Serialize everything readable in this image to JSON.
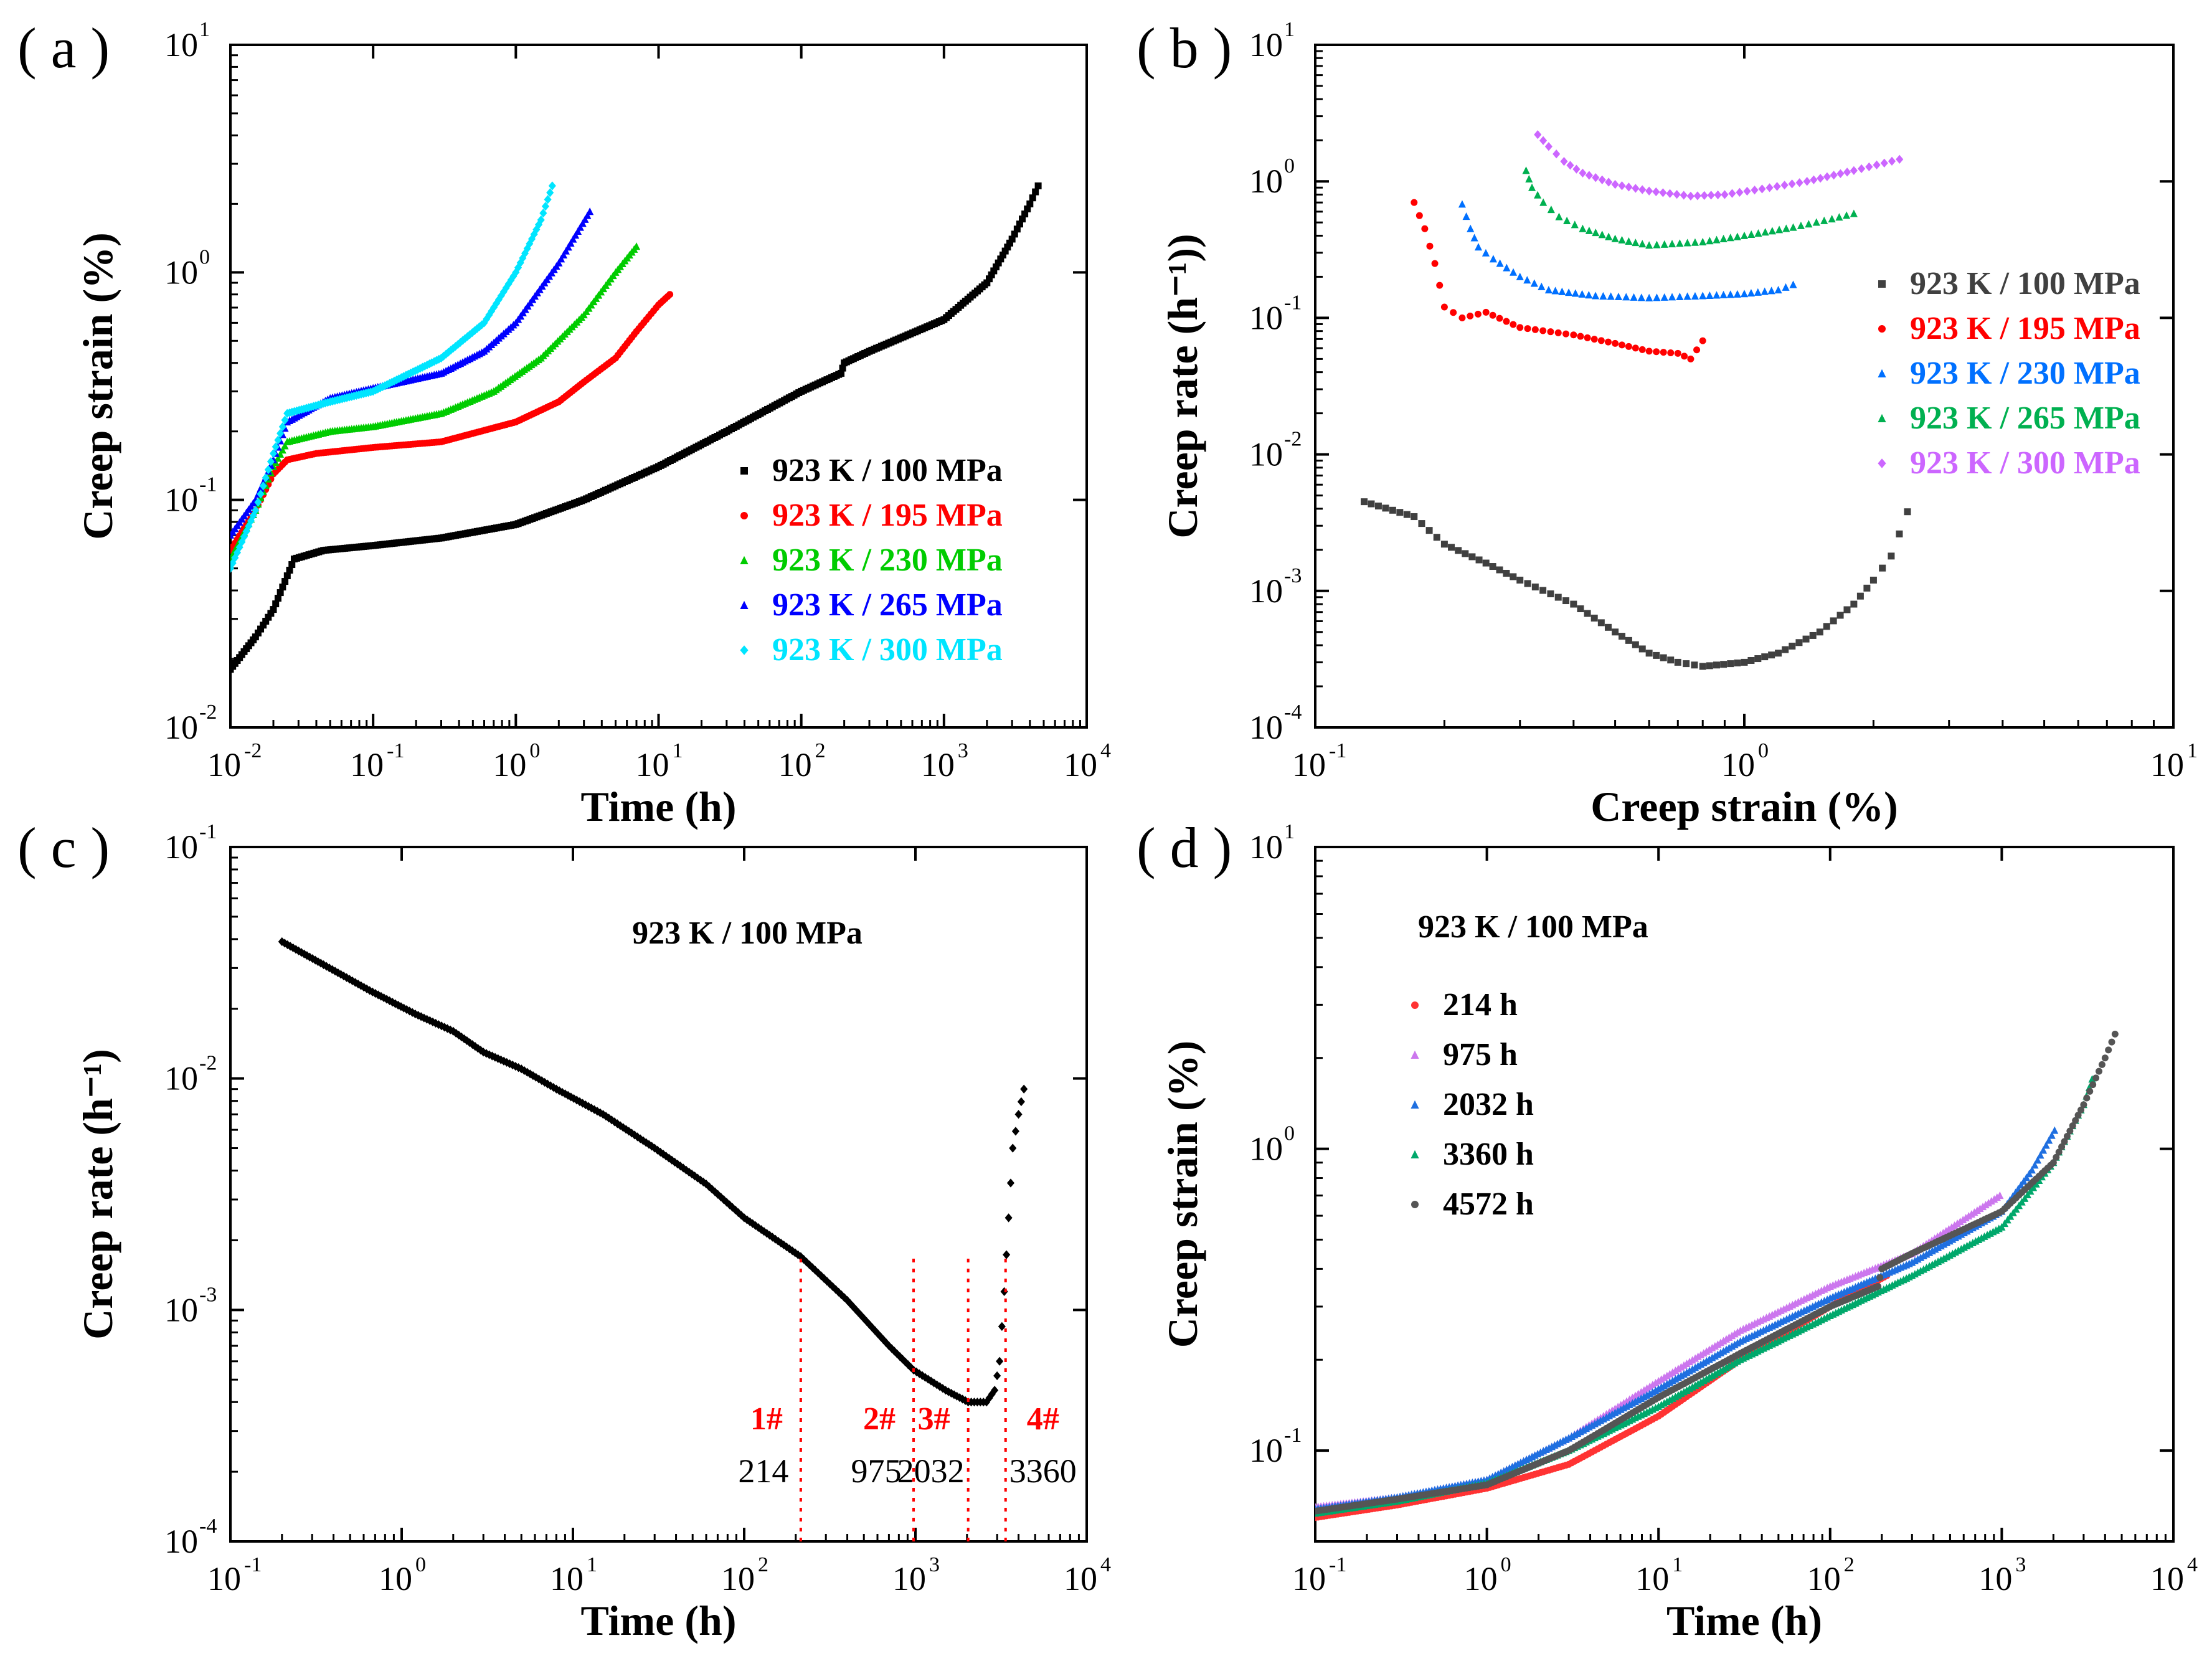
{
  "figure": {
    "panel_labels": [
      "( a )",
      "( b )",
      "( c )",
      "( d )"
    ]
  },
  "chart_data": [
    {
      "id": "a",
      "type": "scatter",
      "title": "",
      "xlabel": "Time (h)",
      "ylabel": "Creep strain (%)",
      "xscale": "log",
      "yscale": "log",
      "xlim": [
        0.01,
        10000
      ],
      "ylim": [
        0.01,
        10
      ],
      "legend_position": "lower-right",
      "series": [
        {
          "name": "923 K / 100 MPa",
          "color": "#000000",
          "marker": "square",
          "x": [
            0.01,
            0.015,
            0.02,
            0.028,
            0.045,
            0.1,
            0.3,
            1,
            3,
            10,
            30,
            100,
            190,
            200,
            300,
            1000,
            2000,
            3000,
            4000,
            4572
          ],
          "y": [
            0.018,
            0.025,
            0.033,
            0.055,
            0.06,
            0.063,
            0.068,
            0.078,
            0.1,
            0.14,
            0.2,
            0.3,
            0.36,
            0.4,
            0.45,
            0.62,
            0.9,
            1.4,
            2.0,
            2.4
          ]
        },
        {
          "name": "923 K / 195 MPa",
          "color": "#ff0000",
          "marker": "circle",
          "x": [
            0.01,
            0.015,
            0.02,
            0.025,
            0.04,
            0.1,
            0.3,
            1,
            2,
            3,
            5,
            7,
            10,
            12
          ],
          "y": [
            0.06,
            0.09,
            0.13,
            0.15,
            0.16,
            0.17,
            0.18,
            0.22,
            0.27,
            0.33,
            0.42,
            0.55,
            0.72,
            0.8
          ]
        },
        {
          "name": "923 K / 230 MPa",
          "color": "#00cc00",
          "marker": "triangle",
          "x": [
            0.01,
            0.015,
            0.02,
            0.025,
            0.05,
            0.1,
            0.3,
            0.7,
            1.5,
            3,
            5,
            7
          ],
          "y": [
            0.055,
            0.09,
            0.14,
            0.18,
            0.2,
            0.21,
            0.24,
            0.3,
            0.42,
            0.65,
            1.0,
            1.3
          ]
        },
        {
          "name": "923 K / 265 MPa",
          "color": "#0000ff",
          "marker": "triangle",
          "x": [
            0.01,
            0.015,
            0.02,
            0.025,
            0.05,
            0.1,
            0.3,
            0.6,
            1,
            2,
            3.3
          ],
          "y": [
            0.07,
            0.1,
            0.15,
            0.22,
            0.28,
            0.31,
            0.36,
            0.45,
            0.6,
            1.1,
            1.85
          ]
        },
        {
          "name": "923 K / 300 MPa",
          "color": "#00e5ff",
          "marker": "diamond",
          "x": [
            0.01,
            0.015,
            0.02,
            0.025,
            0.05,
            0.1,
            0.3,
            0.6,
            1,
            1.5,
            1.8
          ],
          "y": [
            0.05,
            0.09,
            0.16,
            0.24,
            0.27,
            0.3,
            0.42,
            0.6,
            1.0,
            1.7,
            2.4
          ]
        }
      ]
    },
    {
      "id": "b",
      "type": "scatter",
      "title": "",
      "xlabel": "Creep strain (%)",
      "ylabel": "Creep rate (h⁻¹))",
      "xscale": "log",
      "yscale": "log",
      "xlim": [
        0.1,
        10
      ],
      "ylim": [
        0.0001,
        10
      ],
      "legend_position": "right",
      "series": [
        {
          "name": "923 K / 100 MPa",
          "color": "#404040",
          "marker": "square",
          "x": [
            0.13,
            0.17,
            0.2,
            0.25,
            0.3,
            0.4,
            0.5,
            0.6,
            0.7,
            0.8,
            1.0,
            1.2,
            1.5,
            1.8,
            2.0,
            2.2,
            2.4
          ],
          "y": [
            0.0045,
            0.0035,
            0.0022,
            0.0016,
            0.0012,
            0.0008,
            0.0005,
            0.00035,
            0.0003,
            0.00028,
            0.0003,
            0.00035,
            0.0005,
            0.0008,
            0.0012,
            0.0018,
            0.0038
          ]
        },
        {
          "name": "923 K / 195 MPa",
          "color": "#ff0000",
          "marker": "circle",
          "x": [
            0.17,
            0.18,
            0.19,
            0.2,
            0.22,
            0.25,
            0.3,
            0.4,
            0.5,
            0.6,
            0.7,
            0.75,
            0.8
          ],
          "y": [
            0.7,
            0.45,
            0.25,
            0.12,
            0.1,
            0.11,
            0.085,
            0.075,
            0.065,
            0.057,
            0.055,
            0.05,
            0.068
          ]
        },
        {
          "name": "923 K / 230 MPa",
          "color": "#0070ff",
          "marker": "triangle",
          "x": [
            0.22,
            0.23,
            0.24,
            0.26,
            0.3,
            0.35,
            0.45,
            0.6,
            0.8,
            1.0,
            1.2,
            1.3
          ],
          "y": [
            0.68,
            0.45,
            0.33,
            0.27,
            0.2,
            0.16,
            0.145,
            0.14,
            0.145,
            0.15,
            0.16,
            0.175
          ]
        },
        {
          "name": "923 K / 265 MPa",
          "color": "#00b050",
          "marker": "triangle",
          "x": [
            0.31,
            0.32,
            0.34,
            0.37,
            0.42,
            0.5,
            0.6,
            0.8,
            1.0,
            1.3,
            1.6,
            1.8
          ],
          "y": [
            1.2,
            0.9,
            0.7,
            0.55,
            0.45,
            0.38,
            0.34,
            0.36,
            0.4,
            0.46,
            0.53,
            0.58
          ]
        },
        {
          "name": "923 K / 300 MPa",
          "color": "#cc66ff",
          "marker": "diamond",
          "x": [
            0.33,
            0.35,
            0.38,
            0.42,
            0.5,
            0.6,
            0.75,
            0.9,
            1.1,
            1.4,
            1.8,
            2.3
          ],
          "y": [
            2.2,
            1.8,
            1.4,
            1.15,
            0.95,
            0.85,
            0.78,
            0.8,
            0.88,
            1.0,
            1.2,
            1.45
          ]
        }
      ]
    },
    {
      "id": "c",
      "type": "scatter",
      "title": "",
      "xlabel": "Time (h)",
      "ylabel": "Creep rate (h⁻¹)",
      "xscale": "log",
      "yscale": "log",
      "xlim": [
        0.1,
        10000
      ],
      "ylim": [
        0.0001,
        0.1
      ],
      "annotation": "923 K / 100 MPa",
      "series": [
        {
          "name": "923 K / 100 MPa",
          "color": "#000000",
          "marker": "diamond",
          "x": [
            0.2,
            0.35,
            0.65,
            1.2,
            2,
            3,
            5,
            8,
            15,
            30,
            60,
            100,
            214,
            400,
            700,
            975,
            1500,
            2032,
            2600,
            2900,
            3100,
            3300,
            3500,
            3700,
            4000,
            4300
          ],
          "y": [
            0.039,
            0.031,
            0.024,
            0.019,
            0.016,
            0.013,
            0.011,
            0.009,
            0.007,
            0.005,
            0.0035,
            0.0025,
            0.0017,
            0.0011,
            0.0007,
            0.00055,
            0.00045,
            0.0004,
            0.0004,
            0.00045,
            0.0006,
            0.0012,
            0.0025,
            0.005,
            0.007,
            0.009
          ]
        }
      ],
      "markers": [
        {
          "label": "1#",
          "value": "214",
          "x": 214
        },
        {
          "label": "2#",
          "value": "975",
          "x": 975
        },
        {
          "label": "3#",
          "value": "2032",
          "x": 2032
        },
        {
          "label": "4#",
          "value": "3360",
          "x": 3360
        }
      ]
    },
    {
      "id": "d",
      "type": "scatter",
      "title": "",
      "xlabel": "Time (h)",
      "ylabel": "Creep strain (%)",
      "xscale": "log",
      "yscale": "log",
      "xlim": [
        0.1,
        10000
      ],
      "ylim": [
        0.05,
        10
      ],
      "annotation": "923 K / 100 MPa",
      "legend_position": "left",
      "series": [
        {
          "name": "214 h",
          "color": "#ff3333",
          "marker": "circle",
          "x": [
            0.1,
            0.3,
            1,
            3,
            10,
            30,
            100,
            214
          ],
          "y": [
            0.06,
            0.066,
            0.075,
            0.09,
            0.13,
            0.2,
            0.3,
            0.38
          ]
        },
        {
          "name": "975 h",
          "color": "#cc77ee",
          "marker": "triangle",
          "x": [
            0.1,
            0.3,
            1,
            3,
            10,
            30,
            100,
            300,
            975
          ],
          "y": [
            0.065,
            0.07,
            0.08,
            0.11,
            0.17,
            0.25,
            0.35,
            0.45,
            0.7
          ]
        },
        {
          "name": "2032 h",
          "color": "#1f6fe0",
          "marker": "triangle",
          "x": [
            0.1,
            0.3,
            1,
            3,
            10,
            30,
            100,
            300,
            1000,
            1500,
            2032
          ],
          "y": [
            0.064,
            0.07,
            0.08,
            0.11,
            0.16,
            0.23,
            0.32,
            0.42,
            0.62,
            0.85,
            1.15
          ]
        },
        {
          "name": "3360 h",
          "color": "#00a86b",
          "marker": "triangle",
          "x": [
            0.1,
            0.3,
            1,
            3,
            10,
            30,
            100,
            300,
            1000,
            2000,
            3000,
            3360
          ],
          "y": [
            0.062,
            0.068,
            0.078,
            0.1,
            0.14,
            0.2,
            0.28,
            0.38,
            0.55,
            0.9,
            1.4,
            1.7
          ]
        },
        {
          "name": "4572 h",
          "color": "#555555",
          "marker": "circle",
          "x": [
            0.1,
            0.3,
            1,
            3,
            10,
            30,
            100,
            190,
            200,
            300,
            1000,
            2000,
            3000,
            4000,
            4572
          ],
          "y": [
            0.063,
            0.069,
            0.077,
            0.1,
            0.15,
            0.21,
            0.3,
            0.35,
            0.4,
            0.45,
            0.62,
            0.9,
            1.4,
            2.0,
            2.4
          ]
        }
      ]
    }
  ]
}
